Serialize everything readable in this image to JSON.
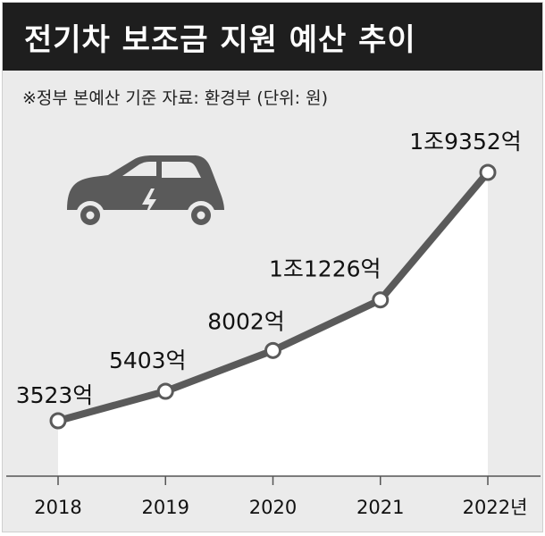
{
  "title": "전기차 보조금 지원 예산 추이",
  "note": "※정부 본예산 기준   자료: 환경부   (단위: 원)",
  "icon": "electric-car-icon",
  "colors": {
    "background": "#ebebeb",
    "title_bar": "#1e1e1e",
    "line": "#5a5a5a",
    "area": "#ffffff",
    "car": "#5a5a5a"
  },
  "chart_data": {
    "type": "area",
    "title": "전기차 보조금 지원 예산 추이",
    "unit": "원",
    "x_suffix": "년",
    "categories": [
      "2018",
      "2019",
      "2020",
      "2021",
      "2022"
    ],
    "values": [
      3523,
      5403,
      8002,
      11226,
      19352
    ],
    "data_labels": [
      "3523억",
      "5403억",
      "8002억",
      "1조1226억",
      "1조9352억"
    ],
    "ylim": [
      0,
      20000
    ],
    "grid": false,
    "legend": "none"
  }
}
